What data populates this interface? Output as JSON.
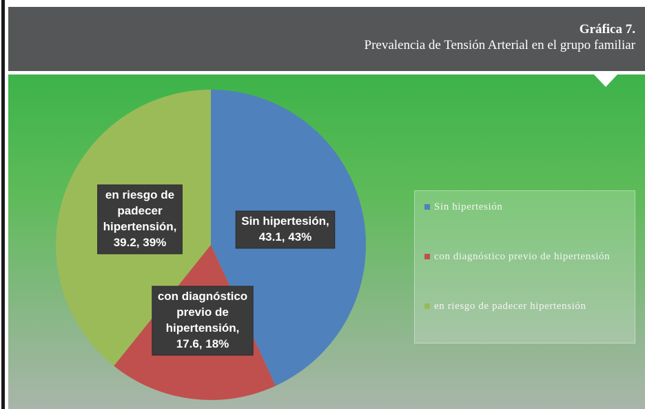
{
  "chart_data": {
    "type": "pie",
    "title": "Gráfica 7.",
    "subtitle": "Prevalencia de Tensión Arterial en el grupo familiar",
    "categories": [
      "Sin hipertesión",
      "con diagnóstico previo de hipertensión",
      "en riesgo de padecer hipertensión"
    ],
    "values": [
      43.1,
      17.6,
      39.2
    ],
    "colors": [
      "#4f81bd",
      "#c0504d",
      "#9bbb59"
    ],
    "data_labels": [
      [
        "Sin hipertesión,",
        "43.1, 43%"
      ],
      [
        "con diagnóstico",
        "previo de",
        "hipertensión,",
        "17.6, 18%"
      ],
      [
        "en riesgo de",
        "padecer",
        "hipertensión,",
        "39.2, 39%"
      ]
    ],
    "legend": "right"
  }
}
